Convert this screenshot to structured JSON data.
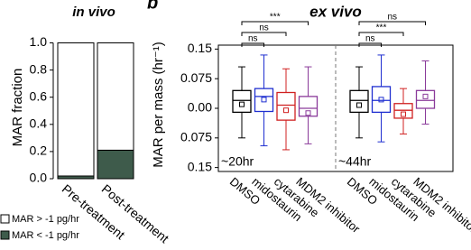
{
  "panel_label": "b",
  "chart_data": [
    {
      "type": "bar",
      "stacked": true,
      "title": "in vivo",
      "ylabel": "MAR fraction",
      "categories": [
        "Pre-treatment",
        "Post-treatment"
      ],
      "series": [
        {
          "name": "MAR < -1 pg/hr",
          "color": "#3e5b4b",
          "values": [
            0.02,
            0.21
          ]
        },
        {
          "name": "MAR > -1 pg/hr",
          "color": "#ffffff",
          "values": [
            0.98,
            0.79
          ]
        }
      ],
      "ylim": [
        0,
        1.05
      ],
      "yticks": [
        {
          "value": 0,
          "label": "0.0"
        },
        0.2,
        0.4,
        0.6,
        0.8,
        {
          "value": 1,
          "label": "1.0"
        }
      ],
      "legend": "lower left"
    },
    {
      "type": "box",
      "title": "ex vivo",
      "ylabel": "MAR per mass (hr⁻¹)",
      "categories": [
        "DMSO",
        "midostaurin",
        "cytarabine",
        "MDM2 inhibitor",
        "DMSO",
        "midostaurin",
        "cytarabine",
        "MDM2 inhibitor"
      ],
      "colors": [
        "#000000",
        "#1f2fd0",
        "#d02020",
        "#8a3a9a",
        "#000000",
        "#1f2fd0",
        "#d02020",
        "#8a3a9a"
      ],
      "boxes": [
        {
          "low": -0.075,
          "q1": -0.01,
          "median": 0.02,
          "q3": 0.045,
          "high": 0.105,
          "mean": 0.01
        },
        {
          "low": -0.095,
          "q1": -0.008,
          "median": 0.03,
          "q3": 0.05,
          "high": 0.135,
          "mean": 0.022
        },
        {
          "low": -0.105,
          "q1": -0.03,
          "median": 0.008,
          "q3": 0.04,
          "high": 0.1,
          "mean": -0.005
        },
        {
          "low": -0.09,
          "q1": -0.02,
          "median": 0.0,
          "q3": 0.03,
          "high": 0.105,
          "mean": -0.012
        },
        {
          "low": -0.075,
          "q1": -0.01,
          "median": 0.02,
          "q3": 0.045,
          "high": 0.105,
          "mean": 0.008
        },
        {
          "low": -0.085,
          "q1": -0.01,
          "median": 0.02,
          "q3": 0.055,
          "high": 0.135,
          "mean": 0.022
        },
        {
          "low": -0.065,
          "q1": -0.025,
          "median": -0.005,
          "q3": 0.012,
          "high": 0.05,
          "mean": -0.015
        },
        {
          "low": -0.04,
          "q1": 0.0,
          "median": 0.02,
          "q3": 0.045,
          "high": 0.12,
          "mean": 0.03
        }
      ],
      "groups": [
        {
          "label": "~20hr",
          "significance": [
            "***",
            "ns",
            "ns"
          ]
        },
        {
          "label": "~44hr",
          "significance": [
            "ns",
            "***",
            "ns"
          ]
        }
      ],
      "ylim": [
        -0.16,
        0.16
      ],
      "yticks": [
        {
          "value": 0.15,
          "label": "0.15"
        },
        {
          "value": 0.075,
          "label": "0.075"
        },
        {
          "value": 0,
          "label": "0.00"
        },
        {
          "value": -0.075,
          "label": "0.075"
        },
        {
          "value": -0.15,
          "label": "0.15"
        }
      ]
    }
  ]
}
